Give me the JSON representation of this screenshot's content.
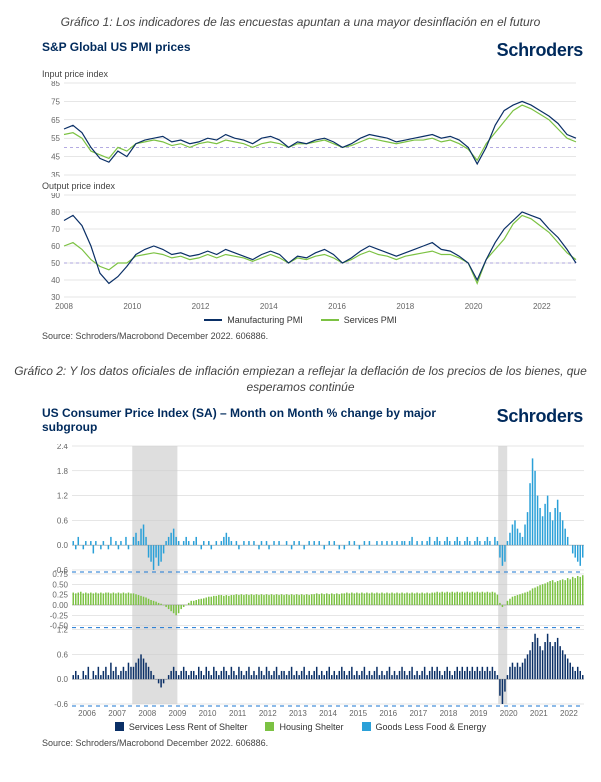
{
  "grafico1": {
    "caption": "Gráfico 1: Los indicadores de las encuestas apuntan a una mayor desinflación en el futuro",
    "title": "S&P Global US PMI prices",
    "brand": "Schroders",
    "source": "Source: Schroders/Macrobond December 2022. 606886.",
    "legend": [
      {
        "label": "Manufacturing PMI",
        "color": "#0a2f66"
      },
      {
        "label": "Services PMI",
        "color": "#7cc243"
      }
    ],
    "panelA": {
      "subtitle": "Input price index",
      "type": "line",
      "colors": {
        "manufacturing": "#0a2f66",
        "services": "#7cc243",
        "ref": "#9b8fd9",
        "grid": "#dddddd",
        "bg": "#ffffff"
      },
      "linewidth": 1.2,
      "xlim": [
        2008,
        2023
      ],
      "ylim": [
        35,
        85
      ],
      "ytick_step": 10,
      "reference_y": 50,
      "x_years": [
        2008,
        2009,
        2010,
        2011,
        2012,
        2013,
        2014,
        2015,
        2016,
        2017,
        2018,
        2019,
        2020,
        2021,
        2022,
        2023
      ],
      "manufacturing": [
        60,
        62,
        58,
        50,
        44,
        42,
        48,
        45,
        52,
        54,
        55,
        56,
        53,
        54,
        52,
        53,
        55,
        54,
        57,
        55,
        54,
        52,
        55,
        56,
        54,
        50,
        53,
        52,
        54,
        55,
        53,
        50,
        52,
        55,
        57,
        56,
        55,
        53,
        54,
        55,
        56,
        57,
        55,
        56,
        54,
        50,
        41,
        50,
        62,
        70,
        73,
        75,
        73,
        70,
        67,
        63,
        57,
        55
      ],
      "services": [
        57,
        58,
        55,
        48,
        46,
        44,
        50,
        48,
        52,
        53,
        54,
        53,
        51,
        52,
        50,
        52,
        53,
        52,
        54,
        53,
        52,
        50,
        52,
        53,
        52,
        50,
        52,
        52,
        53,
        54,
        52,
        50,
        51,
        53,
        55,
        54,
        53,
        52,
        53,
        54,
        54,
        55,
        53,
        54,
        52,
        49,
        43,
        52,
        58,
        64,
        70,
        73,
        71,
        68,
        65,
        60,
        55,
        53
      ]
    },
    "panelB": {
      "subtitle": "Output price index",
      "type": "line",
      "colors": {
        "manufacturing": "#0a2f66",
        "services": "#7cc243",
        "ref": "#9b8fd9",
        "grid": "#dddddd",
        "bg": "#ffffff"
      },
      "linewidth": 1.2,
      "xlim": [
        2008,
        2023
      ],
      "ylim": [
        30,
        90
      ],
      "ytick_step": 10,
      "reference_y": 50,
      "x_years": [
        2008,
        2009,
        2010,
        2011,
        2012,
        2013,
        2014,
        2015,
        2016,
        2017,
        2018,
        2019,
        2020,
        2021,
        2022,
        2023
      ],
      "manufacturing": [
        75,
        78,
        72,
        60,
        44,
        38,
        42,
        48,
        55,
        58,
        60,
        58,
        55,
        56,
        54,
        55,
        57,
        55,
        58,
        56,
        54,
        52,
        55,
        57,
        55,
        50,
        54,
        53,
        56,
        58,
        55,
        50,
        53,
        57,
        60,
        58,
        56,
        54,
        56,
        58,
        60,
        62,
        58,
        57,
        54,
        50,
        40,
        52,
        62,
        70,
        75,
        80,
        78,
        76,
        70,
        65,
        58,
        50
      ],
      "services": [
        60,
        62,
        58,
        52,
        48,
        46,
        50,
        50,
        54,
        55,
        56,
        55,
        53,
        54,
        52,
        53,
        55,
        53,
        55,
        54,
        53,
        51,
        53,
        55,
        53,
        50,
        53,
        52,
        54,
        55,
        53,
        50,
        52,
        55,
        57,
        55,
        54,
        52,
        54,
        55,
        56,
        57,
        55,
        55,
        53,
        50,
        38,
        52,
        58,
        64,
        73,
        78,
        76,
        72,
        68,
        62,
        56,
        52
      ]
    },
    "xticks": [
      2008,
      2010,
      2012,
      2014,
      2016,
      2018,
      2020,
      2022
    ]
  },
  "grafico2": {
    "caption": "Gráfico 2: Y los datos oficiales de inflación empiezan a reflejar la deflación de los precios de los bienes, que esperamos continúe",
    "title": "US Consumer Price Index (SA) – Month on Month % change by major subgroup",
    "brand": "Schroders",
    "source": "Source: Schroders/Macrobond December 2022. 606886.",
    "legend": [
      {
        "label": "Services Less Rent of Shelter",
        "color": "#0a2f66"
      },
      {
        "label": "Housing Shelter",
        "color": "#7cc243"
      },
      {
        "label": "Goods Less Food & Energy",
        "color": "#2aa0d8"
      }
    ],
    "xlim": [
      2006,
      2023
    ],
    "xticks": [
      2006,
      2007,
      2008,
      2009,
      2010,
      2011,
      2012,
      2013,
      2014,
      2015,
      2016,
      2017,
      2018,
      2019,
      2020,
      2021,
      2022
    ],
    "recessions": [
      [
        2008.0,
        2009.5
      ],
      [
        2020.15,
        2020.45
      ]
    ],
    "panelGoods": {
      "type": "bar",
      "color": "#2aa0d8",
      "ylim": [
        -0.6,
        2.4
      ],
      "yticks": [
        -0.6,
        0.0,
        0.6,
        1.2,
        1.8,
        2.4
      ],
      "bar_width": 0.6,
      "values": [
        0.1,
        -0.1,
        0.2,
        0.0,
        -0.1,
        0.1,
        0.0,
        0.1,
        -0.2,
        0.1,
        0.0,
        -0.1,
        0.1,
        0.0,
        -0.1,
        0.2,
        0.0,
        0.1,
        -0.1,
        0.1,
        0.0,
        0.2,
        -0.1,
        0.0,
        0.2,
        0.3,
        0.1,
        0.4,
        0.5,
        0.2,
        -0.3,
        -0.4,
        -0.6,
        -0.3,
        -0.5,
        -0.4,
        -0.2,
        0.1,
        0.2,
        0.3,
        0.4,
        0.2,
        0.1,
        0.0,
        0.1,
        0.2,
        0.1,
        0.0,
        0.1,
        0.2,
        0.0,
        -0.1,
        0.1,
        0.0,
        0.1,
        -0.1,
        0.0,
        0.1,
        0.0,
        0.1,
        0.2,
        0.3,
        0.2,
        0.1,
        0.0,
        0.1,
        -0.1,
        0.0,
        0.1,
        0.0,
        0.1,
        0.0,
        0.1,
        0.0,
        -0.1,
        0.1,
        0.0,
        0.1,
        -0.1,
        0.0,
        0.1,
        0.0,
        0.1,
        0.0,
        0.0,
        0.1,
        0.0,
        -0.1,
        0.1,
        0.0,
        0.1,
        0.0,
        -0.1,
        0.0,
        0.1,
        0.0,
        0.1,
        0.0,
        0.1,
        0.0,
        -0.1,
        0.0,
        0.1,
        0.0,
        0.1,
        0.0,
        -0.1,
        0.0,
        -0.1,
        0.0,
        0.1,
        0.0,
        0.1,
        0.0,
        -0.1,
        0.0,
        0.1,
        0.0,
        0.1,
        0.0,
        0.0,
        0.1,
        0.0,
        0.1,
        0.0,
        0.1,
        0.0,
        0.1,
        0.0,
        0.1,
        0.0,
        0.1,
        0.1,
        0.0,
        0.1,
        0.2,
        0.0,
        0.1,
        0.0,
        0.1,
        0.0,
        0.1,
        0.2,
        0.0,
        0.1,
        0.2,
        0.1,
        0.0,
        0.1,
        0.2,
        0.1,
        0.0,
        0.1,
        0.2,
        0.1,
        0.0,
        0.1,
        0.2,
        0.1,
        0.0,
        0.1,
        0.2,
        0.1,
        0.0,
        0.1,
        0.2,
        0.1,
        0.0,
        0.2,
        0.1,
        -0.3,
        -0.5,
        -0.4,
        0.1,
        0.3,
        0.5,
        0.6,
        0.4,
        0.3,
        0.2,
        0.5,
        0.8,
        1.5,
        2.1,
        1.8,
        1.2,
        0.9,
        0.7,
        1.0,
        1.2,
        0.8,
        0.6,
        0.9,
        1.1,
        0.8,
        0.6,
        0.4,
        0.2,
        0.0,
        -0.2,
        -0.3,
        -0.4,
        -0.5,
        -0.3
      ]
    },
    "panelShelter": {
      "type": "bar",
      "color": "#7cc243",
      "ylim": [
        -0.5,
        0.75
      ],
      "yticks": [
        -0.5,
        -0.25,
        0.0,
        0.25,
        0.5,
        0.75
      ],
      "bar_width": 0.6,
      "values": [
        0.3,
        0.28,
        0.3,
        0.32,
        0.28,
        0.3,
        0.28,
        0.3,
        0.28,
        0.3,
        0.28,
        0.3,
        0.28,
        0.3,
        0.3,
        0.28,
        0.3,
        0.28,
        0.3,
        0.28,
        0.3,
        0.28,
        0.3,
        0.28,
        0.28,
        0.26,
        0.24,
        0.22,
        0.2,
        0.18,
        0.15,
        0.12,
        0.1,
        0.08,
        0.05,
        0.03,
        0.0,
        -0.05,
        -0.1,
        -0.15,
        -0.2,
        -0.25,
        -0.2,
        -0.1,
        -0.05,
        0.0,
        0.05,
        0.1,
        0.1,
        0.12,
        0.14,
        0.15,
        0.16,
        0.18,
        0.2,
        0.2,
        0.22,
        0.22,
        0.24,
        0.24,
        0.22,
        0.24,
        0.22,
        0.24,
        0.24,
        0.26,
        0.24,
        0.26,
        0.24,
        0.26,
        0.24,
        0.26,
        0.24,
        0.26,
        0.24,
        0.26,
        0.24,
        0.26,
        0.24,
        0.26,
        0.24,
        0.26,
        0.24,
        0.26,
        0.24,
        0.26,
        0.24,
        0.26,
        0.24,
        0.26,
        0.24,
        0.26,
        0.24,
        0.26,
        0.24,
        0.26,
        0.26,
        0.28,
        0.26,
        0.28,
        0.26,
        0.28,
        0.26,
        0.28,
        0.26,
        0.28,
        0.26,
        0.28,
        0.28,
        0.3,
        0.28,
        0.3,
        0.28,
        0.3,
        0.28,
        0.3,
        0.28,
        0.3,
        0.28,
        0.3,
        0.28,
        0.3,
        0.28,
        0.3,
        0.28,
        0.3,
        0.28,
        0.3,
        0.28,
        0.3,
        0.28,
        0.3,
        0.28,
        0.3,
        0.28,
        0.3,
        0.28,
        0.3,
        0.28,
        0.3,
        0.28,
        0.3,
        0.28,
        0.3,
        0.3,
        0.32,
        0.3,
        0.32,
        0.3,
        0.32,
        0.3,
        0.32,
        0.3,
        0.32,
        0.3,
        0.32,
        0.3,
        0.32,
        0.3,
        0.32,
        0.3,
        0.32,
        0.3,
        0.32,
        0.3,
        0.32,
        0.3,
        0.32,
        0.3,
        0.25,
        0.05,
        -0.05,
        0.0,
        0.1,
        0.15,
        0.2,
        0.22,
        0.24,
        0.26,
        0.28,
        0.3,
        0.32,
        0.35,
        0.4,
        0.42,
        0.45,
        0.48,
        0.5,
        0.52,
        0.55,
        0.58,
        0.6,
        0.55,
        0.58,
        0.6,
        0.62,
        0.6,
        0.65,
        0.62,
        0.68,
        0.65,
        0.7,
        0.68,
        0.72
      ]
    },
    "panelServices": {
      "type": "bar",
      "color": "#0a2f66",
      "ylim": [
        -0.6,
        1.2
      ],
      "yticks": [
        -0.6,
        0.0,
        0.6,
        1.2
      ],
      "bar_width": 0.6,
      "values": [
        0.1,
        0.2,
        0.1,
        0.0,
        0.2,
        0.1,
        0.3,
        0.0,
        0.2,
        0.1,
        0.3,
        0.1,
        0.2,
        0.3,
        0.1,
        0.4,
        0.2,
        0.3,
        0.1,
        0.2,
        0.3,
        0.2,
        0.4,
        0.3,
        0.3,
        0.4,
        0.5,
        0.6,
        0.5,
        0.4,
        0.3,
        0.2,
        0.1,
        0.0,
        -0.1,
        -0.2,
        -0.1,
        0.0,
        0.1,
        0.2,
        0.3,
        0.2,
        0.1,
        0.2,
        0.3,
        0.2,
        0.1,
        0.2,
        0.2,
        0.1,
        0.3,
        0.2,
        0.1,
        0.3,
        0.2,
        0.1,
        0.3,
        0.2,
        0.1,
        0.2,
        0.3,
        0.2,
        0.1,
        0.3,
        0.2,
        0.1,
        0.3,
        0.2,
        0.1,
        0.2,
        0.3,
        0.1,
        0.2,
        0.1,
        0.3,
        0.2,
        0.1,
        0.3,
        0.2,
        0.1,
        0.2,
        0.3,
        0.1,
        0.2,
        0.2,
        0.1,
        0.2,
        0.3,
        0.1,
        0.2,
        0.1,
        0.2,
        0.3,
        0.1,
        0.2,
        0.1,
        0.2,
        0.3,
        0.1,
        0.2,
        0.1,
        0.2,
        0.3,
        0.1,
        0.2,
        0.1,
        0.2,
        0.3,
        0.2,
        0.1,
        0.2,
        0.3,
        0.1,
        0.2,
        0.1,
        0.2,
        0.3,
        0.1,
        0.2,
        0.1,
        0.2,
        0.3,
        0.1,
        0.2,
        0.1,
        0.2,
        0.3,
        0.1,
        0.2,
        0.1,
        0.2,
        0.3,
        0.2,
        0.1,
        0.2,
        0.3,
        0.1,
        0.2,
        0.1,
        0.2,
        0.3,
        0.1,
        0.2,
        0.3,
        0.2,
        0.3,
        0.2,
        0.1,
        0.2,
        0.3,
        0.2,
        0.1,
        0.2,
        0.3,
        0.2,
        0.3,
        0.2,
        0.3,
        0.2,
        0.3,
        0.2,
        0.3,
        0.2,
        0.3,
        0.2,
        0.3,
        0.2,
        0.3,
        0.2,
        0.1,
        -0.4,
        -0.6,
        -0.3,
        0.1,
        0.3,
        0.4,
        0.3,
        0.4,
        0.3,
        0.4,
        0.5,
        0.6,
        0.7,
        0.9,
        1.1,
        1.0,
        0.8,
        0.7,
        0.9,
        1.1,
        0.9,
        0.8,
        0.9,
        1.0,
        0.8,
        0.7,
        0.6,
        0.5,
        0.4,
        0.3,
        0.2,
        0.3,
        0.2,
        0.1
      ]
    }
  }
}
